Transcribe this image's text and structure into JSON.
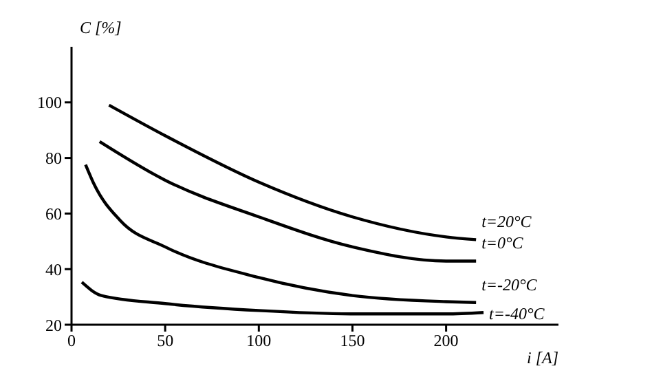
{
  "chart_data": {
    "type": "line",
    "xlabel": "i [A]",
    "ylabel": "C [%]",
    "xlim": [
      0,
      260
    ],
    "ylim": [
      20,
      120
    ],
    "xticks": [
      0,
      50,
      100,
      150,
      200
    ],
    "yticks": [
      20,
      40,
      60,
      80,
      100
    ],
    "marker": "none",
    "line_style": "solid",
    "series": [
      {
        "name": "t=20°C",
        "color": "#000000",
        "x": [
          20,
          50,
          100,
          150,
          200,
          216
        ],
        "values": [
          99,
          88,
          71.3,
          58.8,
          51.6,
          50.6
        ]
      },
      {
        "name": "t=0°C",
        "color": "#000000",
        "x": [
          15,
          50,
          100,
          150,
          200,
          216
        ],
        "values": [
          85.9,
          72,
          58.8,
          48,
          42.9,
          42.9
        ]
      },
      {
        "name": "t=-20°C",
        "color": "#000000",
        "x": [
          7.5,
          12,
          26,
          50,
          100,
          150,
          200,
          216
        ],
        "values": [
          77.6,
          70.6,
          57.5,
          48,
          37,
          30.5,
          28.3,
          28
        ]
      },
      {
        "name": "t=-40°C",
        "color": "#000000",
        "x": [
          5.5,
          16,
          50,
          100,
          150,
          200,
          220
        ],
        "values": [
          35.3,
          30.5,
          27.6,
          25.1,
          23.9,
          23.9,
          24.4
        ]
      }
    ]
  }
}
